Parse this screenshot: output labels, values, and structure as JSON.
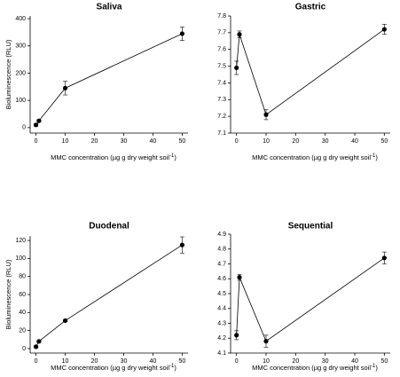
{
  "chart_data": [
    {
      "type": "line",
      "title": "Saliva",
      "ylabel": "Bioluminescence (RLU)",
      "xlabel": "MMC concentration (µg g dry weight soil",
      "xlabel_sup": "-1",
      "x": [
        0,
        1,
        10,
        50
      ],
      "values": [
        10,
        25,
        145,
        345
      ],
      "errors": [
        5,
        4,
        25,
        25
      ],
      "color": "#000000",
      "xlim": [
        -2,
        52
      ],
      "ylim": [
        -20,
        410
      ],
      "xticks": [
        0,
        10,
        20,
        30,
        40,
        50
      ],
      "yticks": [
        0,
        100,
        200,
        300,
        400
      ]
    },
    {
      "type": "line",
      "title": "Gastric",
      "xlabel": "MMC concentration (µg g dry weight soil",
      "xlabel_sup": "-1",
      "x": [
        0,
        1,
        10,
        50
      ],
      "values": [
        7.49,
        7.69,
        7.21,
        7.72
      ],
      "errors": [
        0.04,
        0.02,
        0.03,
        0.03
      ],
      "color": "#000000",
      "xlim": [
        -2,
        52
      ],
      "ylim": [
        7.1,
        7.8
      ],
      "xticks": [
        0,
        10,
        20,
        30,
        40,
        50
      ],
      "yticks": [
        7.1,
        7.2,
        7.3,
        7.4,
        7.5,
        7.6,
        7.7,
        7.8
      ]
    },
    {
      "type": "line",
      "title": "Duodenal",
      "ylabel": "Bioluminescence (RLU)",
      "xlabel": "MMC concentration (µg g dry weight soil",
      "xlabel_sup": "-1",
      "x": [
        0,
        1,
        10,
        50
      ],
      "values": [
        2,
        8,
        31,
        115
      ],
      "errors": [
        1,
        1,
        1,
        9
      ],
      "color": "#000000",
      "xlim": [
        -2,
        52
      ],
      "ylim": [
        -5,
        125
      ],
      "xticks": [
        0,
        10,
        20,
        30,
        40,
        50
      ],
      "yticks": [
        0,
        20,
        40,
        60,
        80,
        100,
        120
      ]
    },
    {
      "type": "line",
      "title": "Sequential",
      "xlabel": "MMC concentration (µg g dry weight soil",
      "xlabel_sup": "-1",
      "x": [
        0,
        1,
        10,
        50
      ],
      "values": [
        4.22,
        4.61,
        4.18,
        4.74
      ],
      "errors": [
        0.03,
        0.02,
        0.04,
        0.04
      ],
      "color": "#000000",
      "xlim": [
        -2,
        52
      ],
      "ylim": [
        4.1,
        4.9
      ],
      "xticks": [
        0,
        10,
        20,
        30,
        40,
        50
      ],
      "yticks": [
        4.1,
        4.2,
        4.3,
        4.4,
        4.5,
        4.6,
        4.7,
        4.8,
        4.9
      ]
    }
  ]
}
